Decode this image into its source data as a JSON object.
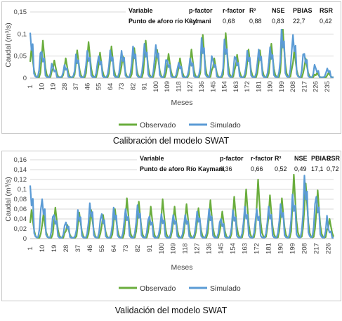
{
  "colors": {
    "observed": "#6aad3d",
    "simulated": "#5b9bd5",
    "grid": "#d9d9d9",
    "axis": "#bfbfbf"
  },
  "chart_data": [
    {
      "type": "line",
      "title": "",
      "xlabel": "Meses",
      "ylabel": "Caudal (m³/s)",
      "ylim": [
        0,
        0.15
      ],
      "yticks": [
        "0",
        "0,05",
        "0,1",
        "0,15"
      ],
      "xticks": [
        "1",
        "10",
        "19",
        "28",
        "37",
        "46",
        "55",
        "64",
        "73",
        "82",
        "91",
        "100",
        "109",
        "118",
        "127",
        "136",
        "145",
        "154",
        "163",
        "172",
        "181",
        "190",
        "199",
        "208",
        "217",
        "226",
        "235"
      ],
      "grid": true,
      "legend_position": "bottom",
      "months": 240,
      "series": [
        {
          "name": "Observado",
          "color": "#6aad3d",
          "peaks": [
            0.067,
            0.085,
            0.04,
            0.045,
            0.063,
            0.082,
            0.058,
            0.072,
            0.05,
            0.068,
            0.085,
            0.064,
            0.055,
            0.045,
            0.065,
            0.098,
            0.045,
            0.102,
            0.053,
            0.065,
            0.063,
            0.078,
            0.112,
            0.063,
            0.045,
            0.012
          ]
        },
        {
          "name": "Simulado",
          "color": "#5b9bd5",
          "peaks": [
            0.103,
            0.06,
            0.024,
            0.03,
            0.054,
            0.062,
            0.05,
            0.063,
            0.062,
            0.072,
            0.078,
            0.075,
            0.04,
            0.035,
            0.045,
            0.091,
            0.04,
            0.088,
            0.046,
            0.062,
            0.065,
            0.07,
            0.112,
            0.098,
            0.055,
            0.022
          ]
        }
      ],
      "table": {
        "headers": [
          "Variable",
          "p-factor",
          "r-factor",
          "R²",
          "NSE",
          "PBIAS",
          "RSR"
        ],
        "row": [
          "Punto de aforo río Kaymani",
          "0,4",
          "0,68",
          "0,88",
          "0,83",
          "22,7",
          "0,42"
        ]
      },
      "caption": "Calibración del modelo SWAT"
    },
    {
      "type": "line",
      "title": "",
      "xlabel": "Meses",
      "ylabel": "Caudal (m³/s)",
      "ylim": [
        0,
        0.16
      ],
      "yticks": [
        "0",
        "0,02",
        "0,04",
        "0,06",
        "0,08",
        "0,1",
        "0,12",
        "0,14",
        "0,16"
      ],
      "xticks": [
        "1",
        "10",
        "19",
        "28",
        "37",
        "46",
        "55",
        "64",
        "73",
        "82",
        "91",
        "100",
        "109",
        "118",
        "127",
        "136",
        "145",
        "154",
        "163",
        "172",
        "181",
        "190",
        "199",
        "208",
        "217",
        "226"
      ],
      "grid": true,
      "legend_position": "bottom",
      "months": 230,
      "series": [
        {
          "name": "Observado",
          "color": "#6aad3d",
          "peaks": [
            0.058,
            0.05,
            0.063,
            0.028,
            0.053,
            0.058,
            0.048,
            0.06,
            0.082,
            0.075,
            0.065,
            0.08,
            0.065,
            0.07,
            0.062,
            0.078,
            0.055,
            0.085,
            0.1,
            0.12,
            0.088,
            0.082,
            0.13,
            0.112,
            0.098,
            0.04
          ]
        },
        {
          "name": "Simulado",
          "color": "#5b9bd5",
          "peaks": [
            0.108,
            0.08,
            0.048,
            0.033,
            0.058,
            0.072,
            0.05,
            0.063,
            0.06,
            0.068,
            0.045,
            0.05,
            0.048,
            0.048,
            0.055,
            0.06,
            0.04,
            0.058,
            0.065,
            0.06,
            0.065,
            0.07,
            0.09,
            0.128,
            0.085,
            0.02
          ]
        }
      ],
      "table": {
        "headers": [
          "Variable",
          "p-factor",
          "r-factor",
          "R²",
          "NSE",
          "PBIAS",
          "RSR"
        ],
        "row": [
          "Punto de aforo Río Kaymani",
          "0,36",
          "0,66",
          "0,52",
          "0,49",
          "17,1",
          "0,72"
        ]
      },
      "caption": "Validación del modelo SWAT"
    }
  ]
}
